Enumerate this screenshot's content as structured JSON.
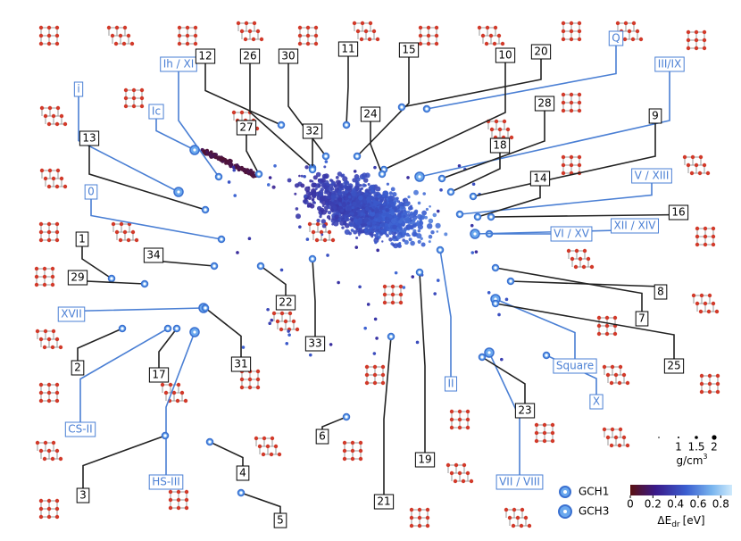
{
  "phase_labels": [
    {
      "text": "i",
      "color": "#4a7fd4"
    },
    {
      "text": "Ih / XI",
      "color": "#4a7fd4"
    },
    {
      "text": "Ic",
      "color": "#4a7fd4"
    },
    {
      "text": "0",
      "color": "#4a7fd4"
    },
    {
      "text": "XVII",
      "color": "#4a7fd4"
    },
    {
      "text": "CS-II",
      "color": "#4a7fd4"
    },
    {
      "text": "HS-III",
      "color": "#4a7fd4"
    },
    {
      "text": "II",
      "color": "#4a7fd4"
    },
    {
      "text": "VII / VIII",
      "color": "#4a7fd4"
    },
    {
      "text": "X",
      "color": "#4a7fd4"
    },
    {
      "text": "Square",
      "color": "#4a7fd4"
    },
    {
      "text": "VI / XV",
      "color": "#4a7fd4"
    },
    {
      "text": "XII / XIV",
      "color": "#4a7fd4"
    },
    {
      "text": "V / XIII",
      "color": "#4a7fd4"
    },
    {
      "text": "III/IX",
      "color": "#4a7fd4"
    },
    {
      "text": "Q",
      "color": "#4a7fd4"
    }
  ],
  "number_labels": [
    "12",
    "26",
    "30",
    "11",
    "15",
    "10",
    "20",
    "28",
    "9",
    "13",
    "27",
    "32",
    "24",
    "18",
    "14",
    "16",
    "1",
    "34",
    "29",
    "22",
    "33",
    "8",
    "7",
    "2",
    "17",
    "31",
    "25",
    "6",
    "23",
    "4",
    "19",
    "5",
    "21",
    "3"
  ],
  "legend": [
    "GCH1",
    "GCH3"
  ],
  "colorbar": {
    "clim": [
      0,
      0.9
    ],
    "ticks": [
      0,
      0.2,
      0.4,
      0.6,
      0.8
    ],
    "title": {
      "main": "ΔE",
      "sub": "dr",
      "unit": "[eV]"
    }
  },
  "size_legend": {
    "ticks": [
      1,
      1.5,
      2
    ],
    "title": {
      "main": "g/cm",
      "sup": "3"
    }
  }
}
